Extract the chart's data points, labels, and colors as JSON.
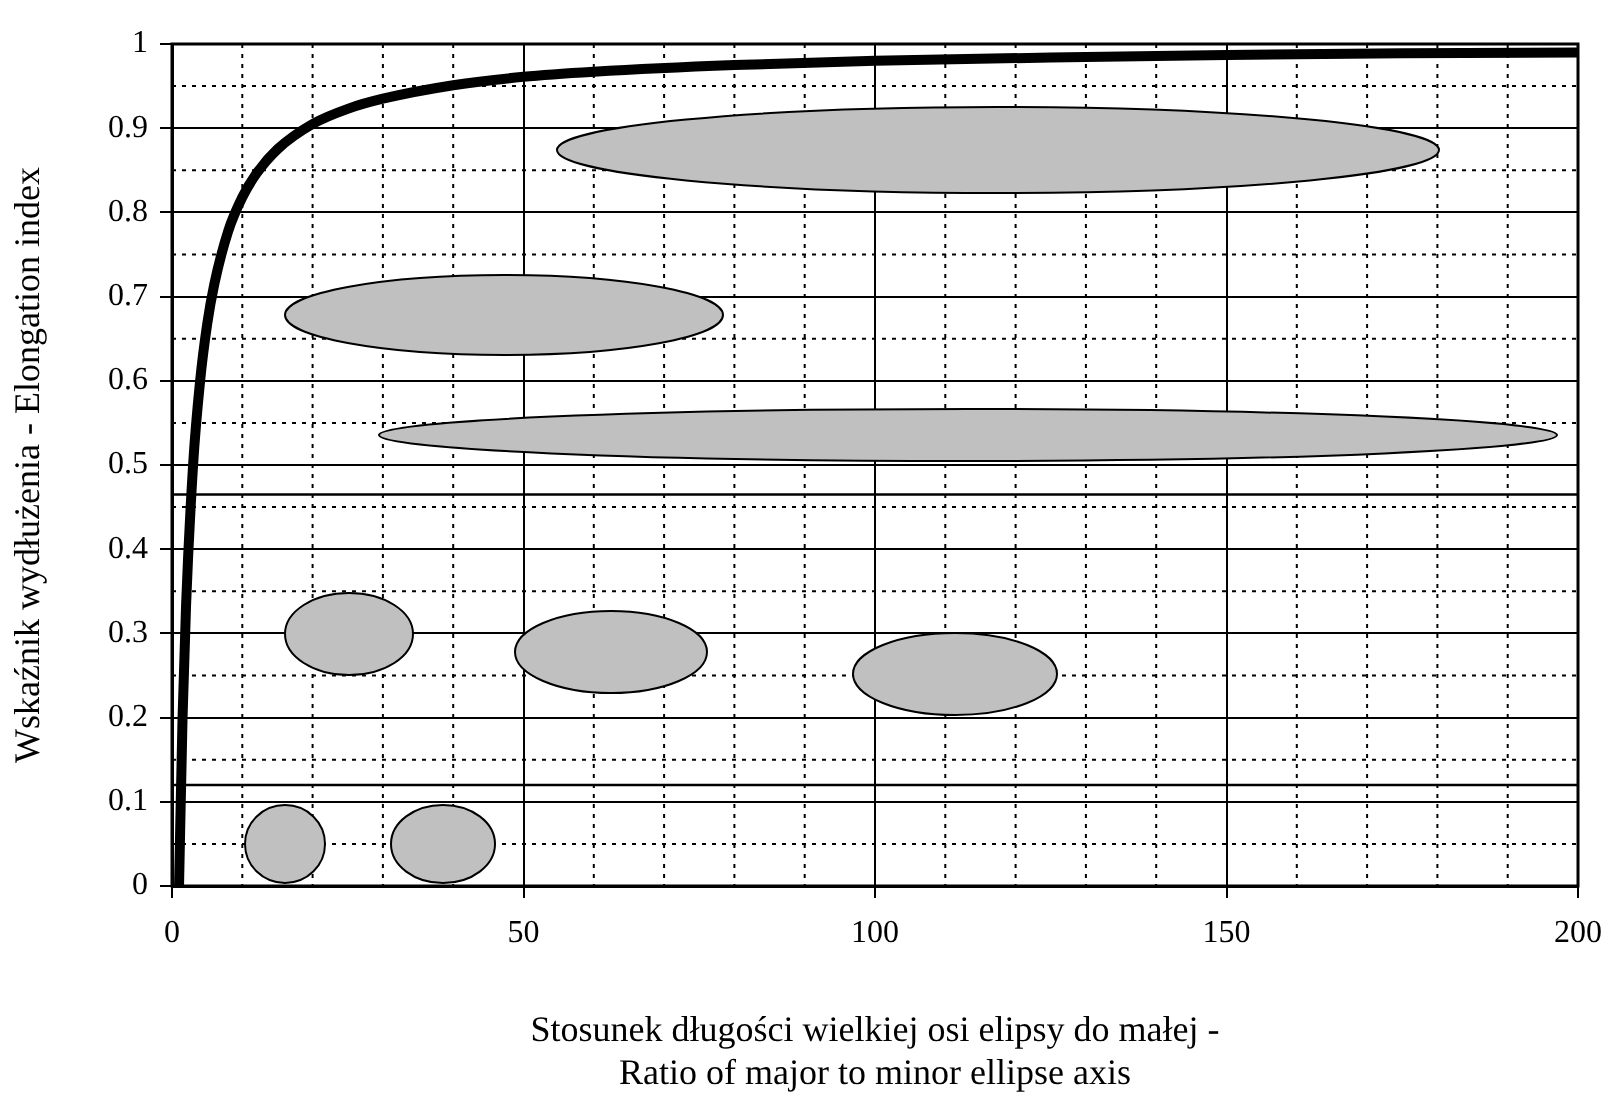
{
  "chart_data": {
    "type": "line",
    "xlabel": "Stosunek długości wielkiej osi elipsy do małej -\nRatio of major to minor ellipse axis",
    "ylabel": "Wskaźnik wydłużenia - Elongation index",
    "x": [
      1,
      1.5,
      2,
      3,
      4,
      5,
      6,
      8,
      10,
      12,
      15,
      20,
      25,
      30,
      40,
      50,
      60,
      80,
      100,
      125,
      150,
      175,
      200
    ],
    "series": [
      {
        "color": "#000000",
        "values": [
          0,
          0.2,
          0.333,
          0.5,
          0.6,
          0.667,
          0.714,
          0.778,
          0.818,
          0.846,
          0.875,
          0.905,
          0.923,
          0.935,
          0.951,
          0.961,
          0.967,
          0.975,
          0.98,
          0.984,
          0.987,
          0.989,
          0.99
        ]
      }
    ],
    "xlim": [
      0,
      200
    ],
    "xticks": [
      0,
      50,
      100,
      150,
      200
    ],
    "ylim": [
      0,
      1
    ],
    "yticks": [
      0,
      0.1,
      0.2,
      0.3,
      0.4,
      0.5,
      0.6,
      0.7,
      0.8,
      0.9,
      1
    ],
    "ref_lines": [
      {
        "axis": "y",
        "value": 0.12,
        "color": "#000000"
      },
      {
        "axis": "y",
        "value": 0.465,
        "color": "#000000"
      }
    ],
    "grid": true,
    "marker": "none",
    "line_style": "solid",
    "legend": false
  }
}
